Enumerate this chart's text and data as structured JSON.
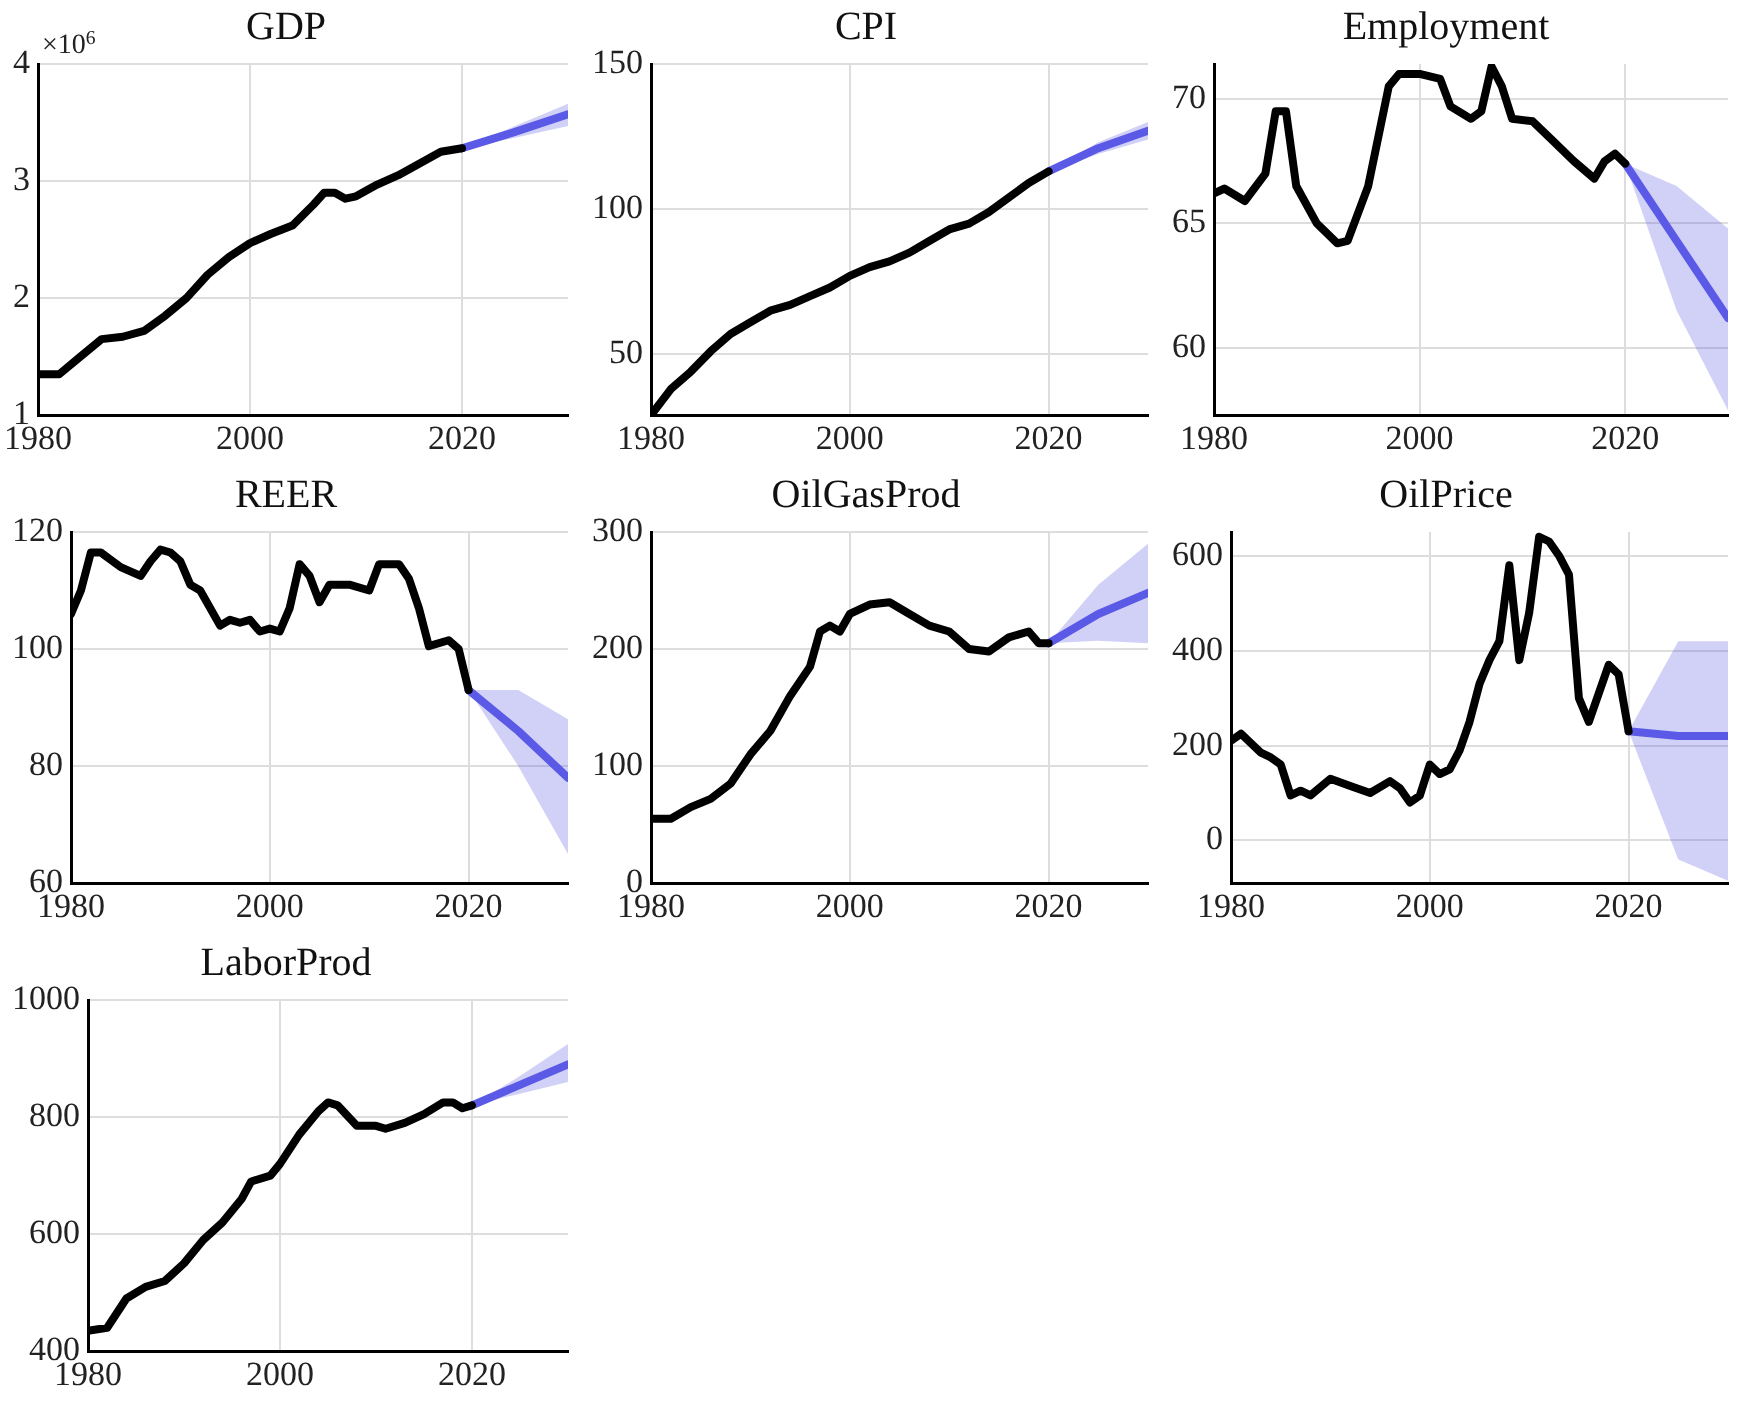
{
  "chart_data": [
    {
      "type": "line",
      "title": "GDP",
      "annotations": [
        "×10$^{6}$"
      ],
      "xlim": [
        1980,
        2030
      ],
      "xticks": [
        1980,
        2000,
        2020
      ],
      "ylim": [
        1,
        4
      ],
      "yticks": [
        1,
        2,
        3,
        4
      ],
      "grid": true,
      "series": [
        {
          "color": "#000000",
          "x": [
            1980,
            1982,
            1984,
            1986,
            1988,
            1990,
            1992,
            1994,
            1996,
            1998,
            2000,
            2002,
            2004,
            2006,
            2007,
            2008,
            2009,
            2010,
            2012,
            2014,
            2016,
            2018,
            2020
          ],
          "values": [
            1.35,
            1.35,
            1.5,
            1.65,
            1.67,
            1.72,
            1.85,
            2.0,
            2.2,
            2.35,
            2.47,
            2.55,
            2.62,
            2.8,
            2.9,
            2.9,
            2.85,
            2.87,
            2.97,
            3.05,
            3.15,
            3.25,
            3.28
          ]
        },
        {
          "color": "#5a5ae6",
          "x": [
            2020,
            2025,
            2030
          ],
          "values": [
            3.28,
            3.42,
            3.57
          ],
          "lower": [
            3.28,
            3.37,
            3.47
          ],
          "upper": [
            3.28,
            3.47,
            3.66
          ]
        }
      ]
    },
    {
      "type": "line",
      "title": "CPI",
      "xlim": [
        1980,
        2030
      ],
      "xticks": [
        1980,
        2000,
        2020
      ],
      "ylim": [
        29,
        150
      ],
      "yticks": [
        50,
        100,
        150
      ],
      "grid": true,
      "series": [
        {
          "color": "#000000",
          "x": [
            1980,
            1982,
            1984,
            1986,
            1988,
            1990,
            1992,
            1994,
            1996,
            1998,
            2000,
            2002,
            2004,
            2006,
            2008,
            2010,
            2012,
            2014,
            2016,
            2018,
            2020
          ],
          "values": [
            29,
            38,
            44,
            51,
            57,
            61,
            65,
            67,
            70,
            73,
            77,
            80,
            82,
            85,
            89,
            93,
            95,
            99,
            104,
            109,
            113
          ]
        },
        {
          "color": "#5a5ae6",
          "x": [
            2020,
            2025,
            2030
          ],
          "values": [
            113,
            121,
            127
          ],
          "lower": [
            113,
            119,
            124
          ],
          "upper": [
            113,
            123,
            130
          ]
        }
      ]
    },
    {
      "type": "line",
      "title": "Employment",
      "xlim": [
        1980,
        2030
      ],
      "xticks": [
        1980,
        2000,
        2020
      ],
      "ylim": [
        57.3,
        71.4
      ],
      "yticks": [
        60,
        65,
        70
      ],
      "grid": true,
      "series": [
        {
          "color": "#000000",
          "x": [
            1980,
            1981,
            1983,
            1985,
            1986,
            1987,
            1988,
            1990,
            1992,
            1993,
            1995,
            1997,
            1998,
            2000,
            2002,
            2003,
            2005,
            2006,
            2007,
            2008,
            2009,
            2011,
            2013,
            2015,
            2017,
            2018,
            2019,
            2020
          ],
          "values": [
            66.2,
            66.4,
            65.9,
            67,
            69.5,
            69.5,
            66.5,
            65,
            64.2,
            64.3,
            66.5,
            70.5,
            71,
            71,
            70.8,
            69.7,
            69.2,
            69.5,
            71.3,
            70.5,
            69.2,
            69.1,
            68.3,
            67.5,
            66.8,
            67.5,
            67.8,
            67.4
          ]
        },
        {
          "color": "#5a5ae6",
          "x": [
            2020,
            2025,
            2030
          ],
          "values": [
            67.4,
            64.3,
            61.2
          ],
          "lower": [
            67.4,
            61.5,
            57.5
          ],
          "upper": [
            67.4,
            66.5,
            64.8
          ]
        }
      ]
    },
    {
      "type": "line",
      "title": "REER",
      "xlim": [
        1980,
        2030
      ],
      "xticks": [
        1980,
        2000,
        2020
      ],
      "ylim": [
        60,
        120
      ],
      "yticks": [
        60,
        80,
        100,
        120
      ],
      "grid": true,
      "series": [
        {
          "color": "#000000",
          "x": [
            1980,
            1981,
            1982,
            1983,
            1985,
            1987,
            1988,
            1989,
            1990,
            1991,
            1992,
            1993,
            1995,
            1996,
            1997,
            1998,
            1999,
            2000,
            2001,
            2002,
            2003,
            2004,
            2005,
            2006,
            2008,
            2010,
            2011,
            2013,
            2014,
            2015,
            2016,
            2018,
            2019,
            2020
          ],
          "values": [
            106,
            110,
            116.5,
            116.5,
            114,
            112.5,
            115,
            117,
            116.5,
            115,
            111,
            110,
            104,
            105,
            104.5,
            105,
            103,
            103.5,
            103,
            107,
            114.5,
            112.5,
            108,
            111,
            111,
            110,
            114.5,
            114.5,
            112,
            107,
            100.5,
            101.5,
            100,
            93
          ]
        },
        {
          "color": "#5a5ae6",
          "x": [
            2020,
            2025,
            2030
          ],
          "values": [
            93,
            86,
            78
          ],
          "lower": [
            93,
            80,
            65
          ],
          "upper": [
            93,
            93,
            88
          ]
        }
      ]
    },
    {
      "type": "line",
      "title": "OilGasProd",
      "xlim": [
        1980,
        2030
      ],
      "xticks": [
        1980,
        2000,
        2020
      ],
      "ylim": [
        0,
        300
      ],
      "yticks": [
        0,
        100,
        200,
        300
      ],
      "grid": true,
      "series": [
        {
          "color": "#000000",
          "x": [
            1980,
            1982,
            1984,
            1986,
            1988,
            1990,
            1992,
            1994,
            1996,
            1997,
            1998,
            1999,
            2000,
            2002,
            2004,
            2006,
            2008,
            2010,
            2012,
            2014,
            2016,
            2018,
            2019,
            2020
          ],
          "values": [
            55,
            55,
            65,
            72,
            85,
            110,
            130,
            160,
            185,
            215,
            220,
            215,
            230,
            238,
            240,
            230,
            220,
            215,
            200,
            198,
            210,
            215,
            205,
            205
          ]
        },
        {
          "color": "#5a5ae6",
          "x": [
            2020,
            2025,
            2030
          ],
          "values": [
            205,
            230,
            248
          ],
          "lower": [
            205,
            207,
            205
          ],
          "upper": [
            205,
            255,
            290
          ]
        }
      ]
    },
    {
      "type": "line",
      "title": "OilPrice",
      "xlim": [
        1980,
        2030
      ],
      "xticks": [
        1980,
        2000,
        2020
      ],
      "ylim": [
        -90,
        650
      ],
      "yticks": [
        0,
        200,
        400,
        600
      ],
      "grid": true,
      "series": [
        {
          "color": "#000000",
          "x": [
            1980,
            1981,
            1983,
            1984,
            1985,
            1986,
            1987,
            1988,
            1990,
            1992,
            1994,
            1996,
            1997,
            1998,
            1999,
            2000,
            2001,
            2002,
            2003,
            2004,
            2005,
            2006,
            2007,
            2008,
            2009,
            2010,
            2011,
            2012,
            2013,
            2014,
            2015,
            2016,
            2017,
            2018,
            2019,
            2020
          ],
          "values": [
            210,
            225,
            185,
            175,
            160,
            95,
            105,
            95,
            130,
            115,
            100,
            125,
            110,
            80,
            95,
            160,
            140,
            150,
            190,
            250,
            330,
            380,
            420,
            580,
            380,
            480,
            640,
            630,
            600,
            560,
            300,
            250,
            310,
            370,
            350,
            230
          ]
        },
        {
          "color": "#5a5ae6",
          "x": [
            2020,
            2025,
            2030
          ],
          "values": [
            230,
            220,
            220
          ],
          "lower": [
            230,
            -40,
            -85
          ],
          "upper": [
            230,
            420,
            420
          ]
        }
      ]
    },
    {
      "type": "line",
      "title": "LaborProd",
      "xlim": [
        1980,
        2030
      ],
      "xticks": [
        1980,
        2000,
        2020
      ],
      "ylim": [
        400,
        1000
      ],
      "yticks": [
        400,
        600,
        800,
        1000
      ],
      "grid": true,
      "series": [
        {
          "color": "#000000",
          "x": [
            1980,
            1982,
            1984,
            1986,
            1988,
            1990,
            1992,
            1994,
            1996,
            1997,
            1999,
            2000,
            2002,
            2004,
            2005,
            2006,
            2008,
            2010,
            2011,
            2013,
            2015,
            2017,
            2018,
            2019,
            2020
          ],
          "values": [
            435,
            440,
            490,
            510,
            520,
            550,
            590,
            620,
            660,
            690,
            700,
            720,
            770,
            810,
            825,
            820,
            785,
            785,
            780,
            790,
            805,
            825,
            825,
            815,
            820
          ]
        },
        {
          "color": "#5a5ae6",
          "x": [
            2020,
            2025,
            2030
          ],
          "values": [
            820,
            855,
            890
          ],
          "lower": [
            820,
            840,
            860
          ],
          "upper": [
            820,
            870,
            925
          ]
        }
      ]
    }
  ]
}
